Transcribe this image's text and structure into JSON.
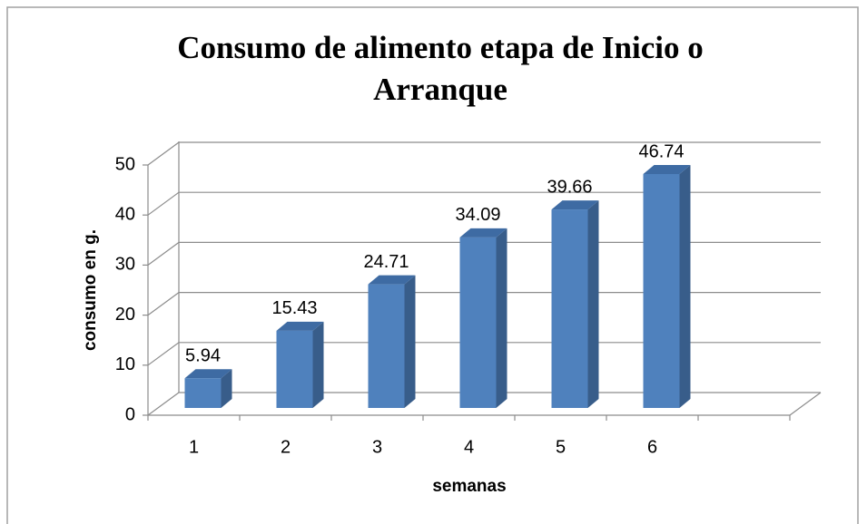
{
  "chart_data": {
    "type": "bar3d",
    "title": "Consumo de alimento etapa de Inicio o Arranque",
    "x_label": "semanas",
    "y_label": "consumo en g.",
    "categories": [
      "1",
      "2",
      "3",
      "4",
      "5",
      "6"
    ],
    "values": [
      5.94,
      15.43,
      24.71,
      34.09,
      39.66,
      46.74
    ],
    "color": "#4f81bd",
    "ylim": [
      0,
      50
    ],
    "yticks": [
      0,
      10,
      20,
      30,
      40,
      50
    ],
    "grid": true
  }
}
